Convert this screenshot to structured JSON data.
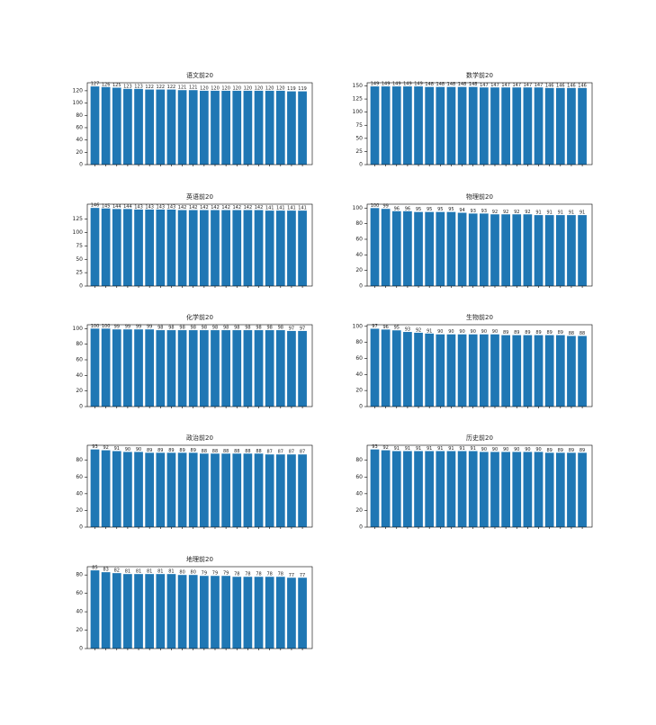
{
  "chart_data": [
    {
      "type": "bar",
      "title": "语文前20",
      "color": "#1f77b4",
      "categories": [
        null,
        null,
        null,
        null,
        null,
        null,
        null,
        null,
        null,
        null,
        null,
        null,
        null,
        null,
        null,
        null,
        null,
        null,
        null,
        null
      ],
      "values": [
        127,
        126,
        125,
        123,
        123,
        122,
        122,
        122,
        121,
        121,
        120,
        120,
        120,
        120,
        120,
        120,
        120,
        120,
        119,
        119
      ],
      "ylim": [
        0,
        133
      ],
      "yticks": [
        0,
        20,
        40,
        60,
        80,
        100,
        120
      ]
    },
    {
      "type": "bar",
      "title": "数学前20",
      "color": "#1f77b4",
      "categories": [
        null,
        null,
        null,
        null,
        null,
        null,
        null,
        null,
        null,
        null,
        null,
        null,
        null,
        null,
        null,
        null,
        null,
        null,
        null,
        null
      ],
      "values": [
        149,
        149,
        149,
        149,
        149,
        148,
        148,
        148,
        148,
        148,
        147,
        147,
        147,
        147,
        147,
        147,
        146,
        146,
        146,
        146
      ],
      "ylim": [
        0,
        156
      ],
      "yticks": [
        0,
        25,
        50,
        75,
        100,
        125,
        150
      ]
    },
    {
      "type": "bar",
      "title": "英语前20",
      "color": "#1f77b4",
      "categories": [
        null,
        null,
        null,
        null,
        null,
        null,
        null,
        null,
        null,
        null,
        null,
        null,
        null,
        null,
        null,
        null,
        null,
        null,
        null,
        null
      ],
      "values": [
        146,
        145,
        144,
        144,
        143,
        143,
        143,
        143,
        142,
        142,
        142,
        142,
        142,
        142,
        142,
        142,
        141,
        141,
        141,
        141
      ],
      "ylim": [
        0,
        153
      ],
      "yticks": [
        0,
        25,
        50,
        75,
        100,
        125
      ]
    },
    {
      "type": "bar",
      "title": "物理前20",
      "color": "#1f77b4",
      "categories": [
        null,
        null,
        null,
        null,
        null,
        null,
        null,
        null,
        null,
        null,
        null,
        null,
        null,
        null,
        null,
        null,
        null,
        null,
        null,
        null
      ],
      "values": [
        100,
        99,
        96,
        96,
        95,
        95,
        95,
        95,
        94,
        93,
        93,
        92,
        92,
        92,
        92,
        91,
        91,
        91,
        91,
        91
      ],
      "ylim": [
        0,
        105
      ],
      "yticks": [
        0,
        20,
        40,
        60,
        80,
        100
      ]
    },
    {
      "type": "bar",
      "title": "化学前20",
      "color": "#1f77b4",
      "categories": [
        null,
        null,
        null,
        null,
        null,
        null,
        null,
        null,
        null,
        null,
        null,
        null,
        null,
        null,
        null,
        null,
        null,
        null,
        null,
        null
      ],
      "values": [
        100,
        100,
        99,
        99,
        99,
        99,
        98,
        98,
        98,
        98,
        98,
        98,
        98,
        98,
        98,
        98,
        98,
        98,
        97,
        97
      ],
      "ylim": [
        0,
        105
      ],
      "yticks": [
        0,
        20,
        40,
        60,
        80,
        100
      ]
    },
    {
      "type": "bar",
      "title": "生物前20",
      "color": "#1f77b4",
      "categories": [
        null,
        null,
        null,
        null,
        null,
        null,
        null,
        null,
        null,
        null,
        null,
        null,
        null,
        null,
        null,
        null,
        null,
        null,
        null,
        null
      ],
      "values": [
        97,
        96,
        95,
        93,
        92,
        91,
        90,
        90,
        90,
        90,
        90,
        90,
        89,
        89,
        89,
        89,
        89,
        89,
        88,
        88
      ],
      "ylim": [
        0,
        102
      ],
      "yticks": [
        0,
        20,
        40,
        60,
        80,
        100
      ]
    },
    {
      "type": "bar",
      "title": "政治前20",
      "color": "#1f77b4",
      "categories": [
        null,
        null,
        null,
        null,
        null,
        null,
        null,
        null,
        null,
        null,
        null,
        null,
        null,
        null,
        null,
        null,
        null,
        null,
        null,
        null
      ],
      "values": [
        93,
        92,
        91,
        90,
        90,
        89,
        89,
        89,
        89,
        89,
        88,
        88,
        88,
        88,
        88,
        88,
        87,
        87,
        87,
        87
      ],
      "ylim": [
        0,
        98
      ],
      "yticks": [
        0,
        20,
        40,
        60,
        80
      ]
    },
    {
      "type": "bar",
      "title": "历史前20",
      "color": "#1f77b4",
      "categories": [
        null,
        null,
        null,
        null,
        null,
        null,
        null,
        null,
        null,
        null,
        null,
        null,
        null,
        null,
        null,
        null,
        null,
        null,
        null,
        null
      ],
      "values": [
        93,
        92,
        91,
        91,
        91,
        91,
        91,
        91,
        91,
        91,
        90,
        90,
        90,
        90,
        90,
        90,
        89,
        89,
        89,
        89
      ],
      "ylim": [
        0,
        98
      ],
      "yticks": [
        0,
        20,
        40,
        60,
        80
      ]
    },
    {
      "type": "bar",
      "title": "地理前20",
      "color": "#1f77b4",
      "categories": [
        null,
        null,
        null,
        null,
        null,
        null,
        null,
        null,
        null,
        null,
        null,
        null,
        null,
        null,
        null,
        null,
        null,
        null,
        null,
        null
      ],
      "values": [
        85,
        83,
        82,
        81,
        81,
        81,
        81,
        81,
        80,
        80,
        79,
        79,
        79,
        78,
        78,
        78,
        78,
        78,
        77,
        77
      ],
      "ylim": [
        0,
        89
      ],
      "yticks": [
        0,
        20,
        40,
        60,
        80
      ]
    }
  ]
}
